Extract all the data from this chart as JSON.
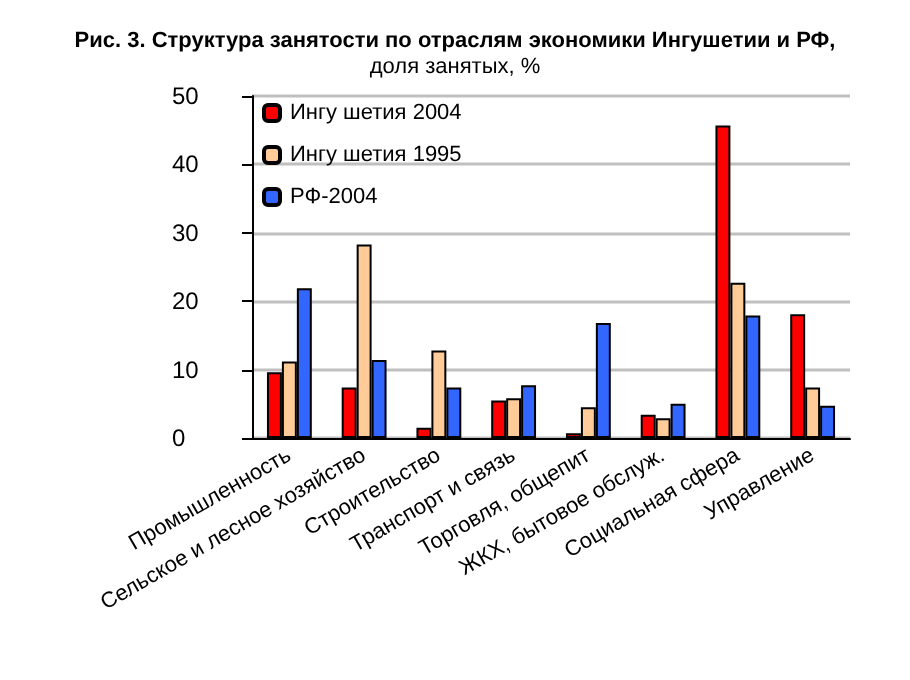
{
  "chart_data": {
    "type": "bar",
    "title": "Рис. 3. Структура занятости по отраслям экономики Ингушетии и РФ,",
    "subtitle": "доля занятых, %",
    "categories": [
      "Промышленность",
      "Сельское и лесное хозяйство",
      "Строительство",
      "Транспорт и связь",
      "Торговля, общепит",
      "ЖКХ, бытовое обслуж.",
      "Социальная сфера",
      "Управление"
    ],
    "series": [
      {
        "name": "Ингу шетия 2004",
        "color": "#ff0000",
        "values": [
          9.6,
          7.4,
          1.5,
          5.5,
          0.7,
          3.4,
          45.7,
          18.1
        ]
      },
      {
        "name": "Ингу шетия 1995",
        "color": "#ffcc99",
        "values": [
          11.2,
          28.3,
          12.8,
          5.8,
          4.5,
          2.9,
          22.7,
          7.4
        ]
      },
      {
        "name": "РФ-2004",
        "color": "#3366ff",
        "values": [
          21.9,
          11.4,
          7.4,
          7.7,
          16.8,
          5.0,
          17.9,
          4.7
        ]
      }
    ],
    "ylim": [
      0,
      50
    ],
    "yticks": [
      0,
      10,
      20,
      30,
      40,
      50
    ],
    "grid": "y",
    "legend": "top left"
  }
}
